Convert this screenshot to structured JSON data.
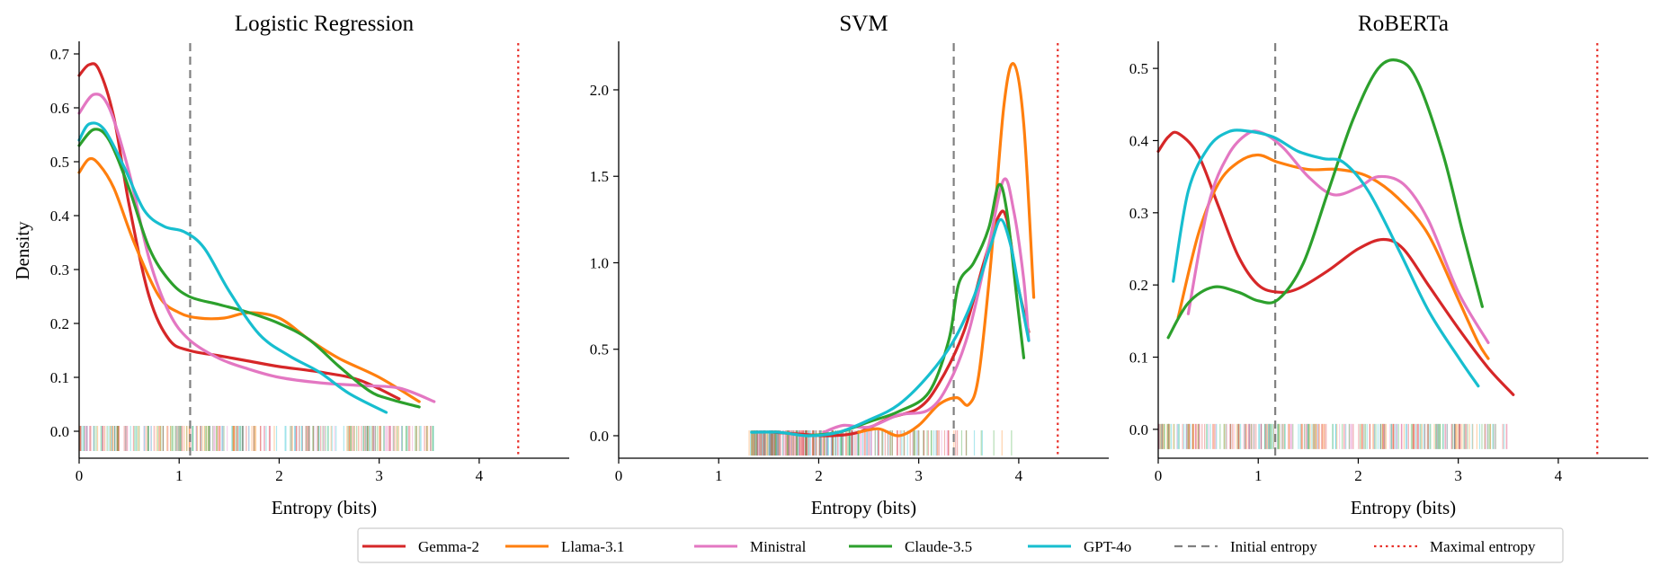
{
  "colors": {
    "Gemma-2": "#d62728",
    "Llama-3.1": "#ff7f0e",
    "Ministral": "#e377c2",
    "Claude-3.5": "#2ca02c",
    "GPT-4o": "#17becf",
    "initial_line": "#808080",
    "maximal_line": "#e8302a"
  },
  "legend": {
    "entries": [
      {
        "label": "Gemma-2",
        "style": "solid",
        "color": "#d62728"
      },
      {
        "label": "Llama-3.1",
        "style": "solid",
        "color": "#ff7f0e"
      },
      {
        "label": "Ministral",
        "style": "solid",
        "color": "#e377c2"
      },
      {
        "label": "Claude-3.5",
        "style": "solid",
        "color": "#2ca02c"
      },
      {
        "label": "GPT-4o",
        "style": "solid",
        "color": "#17becf"
      },
      {
        "label": "Initial entropy",
        "style": "dashed",
        "color": "#808080"
      },
      {
        "label": "Maximal entropy",
        "style": "dotted",
        "color": "#e8302a"
      }
    ],
    "placement": "bottom-center"
  },
  "chart_data": [
    {
      "type": "line",
      "title": "Logistic Regression",
      "xlabel": "Entropy (bits)",
      "ylabel": "Density",
      "xlim": [
        0,
        4.9
      ],
      "ylim": [
        -0.05,
        0.72
      ],
      "xticks": [
        0,
        1,
        2,
        3,
        4
      ],
      "yticks": [
        0.0,
        0.1,
        0.2,
        0.3,
        0.4,
        0.5,
        0.6,
        0.7
      ],
      "ytick_labels": [
        "0.0",
        "0.1",
        "0.2",
        "0.3",
        "0.4",
        "0.5",
        "0.6",
        "0.7"
      ],
      "initial_entropy": 1.11,
      "maximal_entropy": 4.39,
      "rug_range": [
        0,
        3.55
      ],
      "series": [
        {
          "name": "Gemma-2",
          "points": [
            [
              0,
              0.66
            ],
            [
              0.1,
              0.68
            ],
            [
              0.2,
              0.67
            ],
            [
              0.35,
              0.58
            ],
            [
              0.5,
              0.42
            ],
            [
              0.7,
              0.25
            ],
            [
              0.9,
              0.17
            ],
            [
              1.1,
              0.15
            ],
            [
              1.4,
              0.14
            ],
            [
              1.7,
              0.13
            ],
            [
              2.0,
              0.12
            ],
            [
              2.4,
              0.11
            ],
            [
              2.8,
              0.095
            ],
            [
              3.2,
              0.06
            ]
          ]
        },
        {
          "name": "Llama-3.1",
          "points": [
            [
              0,
              0.48
            ],
            [
              0.1,
              0.505
            ],
            [
              0.2,
              0.495
            ],
            [
              0.35,
              0.45
            ],
            [
              0.55,
              0.35
            ],
            [
              0.8,
              0.25
            ],
            [
              1.0,
              0.22
            ],
            [
              1.2,
              0.21
            ],
            [
              1.45,
              0.21
            ],
            [
              1.7,
              0.22
            ],
            [
              2.0,
              0.21
            ],
            [
              2.3,
              0.17
            ],
            [
              2.6,
              0.135
            ],
            [
              3.0,
              0.1
            ],
            [
              3.4,
              0.055
            ]
          ]
        },
        {
          "name": "Ministral",
          "points": [
            [
              0,
              0.59
            ],
            [
              0.15,
              0.625
            ],
            [
              0.3,
              0.6
            ],
            [
              0.5,
              0.48
            ],
            [
              0.7,
              0.32
            ],
            [
              0.9,
              0.22
            ],
            [
              1.1,
              0.17
            ],
            [
              1.4,
              0.135
            ],
            [
              1.7,
              0.115
            ],
            [
              2.0,
              0.1
            ],
            [
              2.4,
              0.09
            ],
            [
              2.8,
              0.085
            ],
            [
              3.2,
              0.08
            ],
            [
              3.55,
              0.055
            ]
          ]
        },
        {
          "name": "Claude-3.5",
          "points": [
            [
              0,
              0.53
            ],
            [
              0.15,
              0.56
            ],
            [
              0.3,
              0.54
            ],
            [
              0.5,
              0.45
            ],
            [
              0.7,
              0.34
            ],
            [
              0.9,
              0.28
            ],
            [
              1.1,
              0.25
            ],
            [
              1.4,
              0.235
            ],
            [
              1.7,
              0.22
            ],
            [
              2.0,
              0.2
            ],
            [
              2.3,
              0.17
            ],
            [
              2.6,
              0.12
            ],
            [
              2.9,
              0.075
            ],
            [
              3.1,
              0.06
            ],
            [
              3.4,
              0.045
            ]
          ]
        },
        {
          "name": "GPT-4o",
          "points": [
            [
              0,
              0.54
            ],
            [
              0.1,
              0.57
            ],
            [
              0.25,
              0.56
            ],
            [
              0.45,
              0.49
            ],
            [
              0.65,
              0.41
            ],
            [
              0.85,
              0.38
            ],
            [
              1.05,
              0.37
            ],
            [
              1.25,
              0.34
            ],
            [
              1.5,
              0.26
            ],
            [
              1.8,
              0.18
            ],
            [
              2.1,
              0.14
            ],
            [
              2.4,
              0.11
            ],
            [
              2.7,
              0.07
            ],
            [
              3.07,
              0.035
            ]
          ]
        }
      ]
    },
    {
      "type": "line",
      "title": "SVM",
      "xlabel": "Entropy (bits)",
      "ylabel": "",
      "xlim": [
        0,
        4.9
      ],
      "ylim": [
        -0.13,
        2.27
      ],
      "xticks": [
        0,
        1,
        2,
        3,
        4
      ],
      "yticks": [
        0.0,
        0.5,
        1.0,
        1.5,
        2.0
      ],
      "ytick_labels": [
        "0.0",
        "0.5",
        "1.0",
        "1.5",
        "2.0"
      ],
      "initial_entropy": 3.35,
      "maximal_entropy": 4.39,
      "rug_range": [
        1.3,
        4.15
      ],
      "series": [
        {
          "name": "Gemma-2",
          "points": [
            [
              1.55,
              0.02
            ],
            [
              1.8,
              0.01
            ],
            [
              2.1,
              0.0
            ],
            [
              2.4,
              0.02
            ],
            [
              2.7,
              0.1
            ],
            [
              3.0,
              0.16
            ],
            [
              3.2,
              0.3
            ],
            [
              3.45,
              0.6
            ],
            [
              3.65,
              1.0
            ],
            [
              3.8,
              1.27
            ],
            [
              3.88,
              1.25
            ],
            [
              3.98,
              0.9
            ],
            [
              4.1,
              0.6
            ]
          ]
        },
        {
          "name": "Llama-3.1",
          "points": [
            [
              2.4,
              0.02
            ],
            [
              2.6,
              0.04
            ],
            [
              2.8,
              0.0
            ],
            [
              3.0,
              0.06
            ],
            [
              3.2,
              0.18
            ],
            [
              3.38,
              0.22
            ],
            [
              3.5,
              0.18
            ],
            [
              3.6,
              0.35
            ],
            [
              3.72,
              1.0
            ],
            [
              3.85,
              1.9
            ],
            [
              3.95,
              2.15
            ],
            [
              4.05,
              1.8
            ],
            [
              4.15,
              0.8
            ]
          ]
        },
        {
          "name": "Ministral",
          "points": [
            [
              2.05,
              0.02
            ],
            [
              2.25,
              0.06
            ],
            [
              2.5,
              0.05
            ],
            [
              2.8,
              0.12
            ],
            [
              3.1,
              0.15
            ],
            [
              3.3,
              0.3
            ],
            [
              3.5,
              0.6
            ],
            [
              3.7,
              1.1
            ],
            [
              3.85,
              1.48
            ],
            [
              3.95,
              1.3
            ],
            [
              4.05,
              0.9
            ],
            [
              4.1,
              0.55
            ]
          ]
        },
        {
          "name": "Claude-3.5",
          "points": [
            [
              1.9,
              0.0
            ],
            [
              2.2,
              0.02
            ],
            [
              2.5,
              0.08
            ],
            [
              2.8,
              0.14
            ],
            [
              3.1,
              0.25
            ],
            [
              3.3,
              0.55
            ],
            [
              3.4,
              0.88
            ],
            [
              3.55,
              1.0
            ],
            [
              3.7,
              1.2
            ],
            [
              3.8,
              1.45
            ],
            [
              3.88,
              1.3
            ],
            [
              3.98,
              0.8
            ],
            [
              4.05,
              0.45
            ]
          ]
        },
        {
          "name": "GPT-4o",
          "points": [
            [
              1.33,
              0.02
            ],
            [
              1.6,
              0.02
            ],
            [
              1.9,
              0.0
            ],
            [
              2.2,
              0.02
            ],
            [
              2.5,
              0.09
            ],
            [
              2.8,
              0.18
            ],
            [
              3.1,
              0.35
            ],
            [
              3.35,
              0.55
            ],
            [
              3.55,
              0.8
            ],
            [
              3.72,
              1.1
            ],
            [
              3.82,
              1.25
            ],
            [
              3.92,
              1.1
            ],
            [
              4.0,
              0.85
            ],
            [
              4.1,
              0.55
            ]
          ]
        }
      ]
    },
    {
      "type": "line",
      "title": "RoBERTa",
      "xlabel": "Entropy (bits)",
      "ylabel": "",
      "xlim": [
        0,
        4.9
      ],
      "ylim": [
        -0.04,
        0.535
      ],
      "xticks": [
        0,
        1,
        2,
        3,
        4
      ],
      "yticks": [
        0.0,
        0.1,
        0.2,
        0.3,
        0.4,
        0.5
      ],
      "ytick_labels": [
        "0.0",
        "0.1",
        "0.2",
        "0.3",
        "0.4",
        "0.5"
      ],
      "initial_entropy": 1.17,
      "maximal_entropy": 4.39,
      "rug_range": [
        0,
        3.5
      ],
      "series": [
        {
          "name": "Gemma-2",
          "points": [
            [
              0,
              0.385
            ],
            [
              0.1,
              0.405
            ],
            [
              0.2,
              0.41
            ],
            [
              0.4,
              0.38
            ],
            [
              0.6,
              0.31
            ],
            [
              0.8,
              0.24
            ],
            [
              1.0,
              0.2
            ],
            [
              1.2,
              0.19
            ],
            [
              1.4,
              0.195
            ],
            [
              1.7,
              0.22
            ],
            [
              2.0,
              0.25
            ],
            [
              2.25,
              0.263
            ],
            [
              2.45,
              0.25
            ],
            [
              2.7,
              0.2
            ],
            [
              3.0,
              0.14
            ],
            [
              3.3,
              0.085
            ],
            [
              3.55,
              0.048
            ]
          ]
        },
        {
          "name": "Llama-3.1",
          "points": [
            [
              0.2,
              0.155
            ],
            [
              0.4,
              0.27
            ],
            [
              0.6,
              0.34
            ],
            [
              0.8,
              0.37
            ],
            [
              1.0,
              0.38
            ],
            [
              1.2,
              0.37
            ],
            [
              1.5,
              0.36
            ],
            [
              1.8,
              0.36
            ],
            [
              2.1,
              0.35
            ],
            [
              2.4,
              0.32
            ],
            [
              2.7,
              0.27
            ],
            [
              3.0,
              0.18
            ],
            [
              3.2,
              0.12
            ],
            [
              3.3,
              0.098
            ]
          ]
        },
        {
          "name": "Ministral",
          "points": [
            [
              0.3,
              0.16
            ],
            [
              0.5,
              0.31
            ],
            [
              0.7,
              0.38
            ],
            [
              0.9,
              0.41
            ],
            [
              1.05,
              0.41
            ],
            [
              1.25,
              0.39
            ],
            [
              1.5,
              0.35
            ],
            [
              1.75,
              0.325
            ],
            [
              2.0,
              0.335
            ],
            [
              2.2,
              0.35
            ],
            [
              2.45,
              0.34
            ],
            [
              2.7,
              0.29
            ],
            [
              3.0,
              0.19
            ],
            [
              3.3,
              0.12
            ]
          ]
        },
        {
          "name": "Claude-3.5",
          "points": [
            [
              0.1,
              0.127
            ],
            [
              0.3,
              0.175
            ],
            [
              0.55,
              0.197
            ],
            [
              0.8,
              0.19
            ],
            [
              1.0,
              0.178
            ],
            [
              1.2,
              0.18
            ],
            [
              1.45,
              0.23
            ],
            [
              1.7,
              0.33
            ],
            [
              1.95,
              0.43
            ],
            [
              2.2,
              0.5
            ],
            [
              2.42,
              0.51
            ],
            [
              2.6,
              0.48
            ],
            [
              2.85,
              0.38
            ],
            [
              3.05,
              0.27
            ],
            [
              3.24,
              0.17
            ]
          ]
        },
        {
          "name": "GPT-4o",
          "points": [
            [
              0.15,
              0.205
            ],
            [
              0.3,
              0.33
            ],
            [
              0.5,
              0.39
            ],
            [
              0.7,
              0.412
            ],
            [
              0.9,
              0.413
            ],
            [
              1.15,
              0.405
            ],
            [
              1.4,
              0.385
            ],
            [
              1.65,
              0.375
            ],
            [
              1.85,
              0.37
            ],
            [
              2.1,
              0.33
            ],
            [
              2.4,
              0.25
            ],
            [
              2.7,
              0.165
            ],
            [
              3.0,
              0.1
            ],
            [
              3.2,
              0.06
            ]
          ]
        }
      ]
    }
  ]
}
